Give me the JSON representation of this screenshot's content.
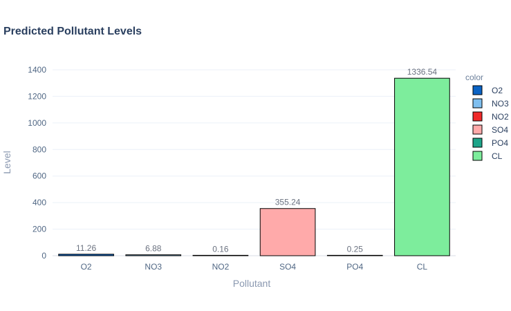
{
  "chart_data": {
    "type": "bar",
    "title": "Predicted Pollutant Levels",
    "xlabel": "Pollutant",
    "ylabel": "Level",
    "categories": [
      "O2",
      "NO3",
      "NO2",
      "SO4",
      "PO4",
      "CL"
    ],
    "values": [
      11.26,
      6.88,
      0.16,
      355.24,
      0.25,
      1336.54
    ],
    "value_labels": [
      "11.26",
      "6.88",
      "0.16",
      "355.24",
      "0.25",
      "1336.54"
    ],
    "colors": [
      "#0b63c4",
      "#7fbfef",
      "#f02a2a",
      "#ffaaaa",
      "#1ea58a",
      "#7ded9c"
    ],
    "ylim": [
      0,
      1400
    ],
    "yticks": [
      0,
      200,
      400,
      600,
      800,
      1000,
      1200,
      1400
    ],
    "grid": true,
    "legend": {
      "title": "color",
      "position": "right",
      "items": [
        "O2",
        "NO3",
        "NO2",
        "SO4",
        "PO4",
        "CL"
      ]
    }
  }
}
